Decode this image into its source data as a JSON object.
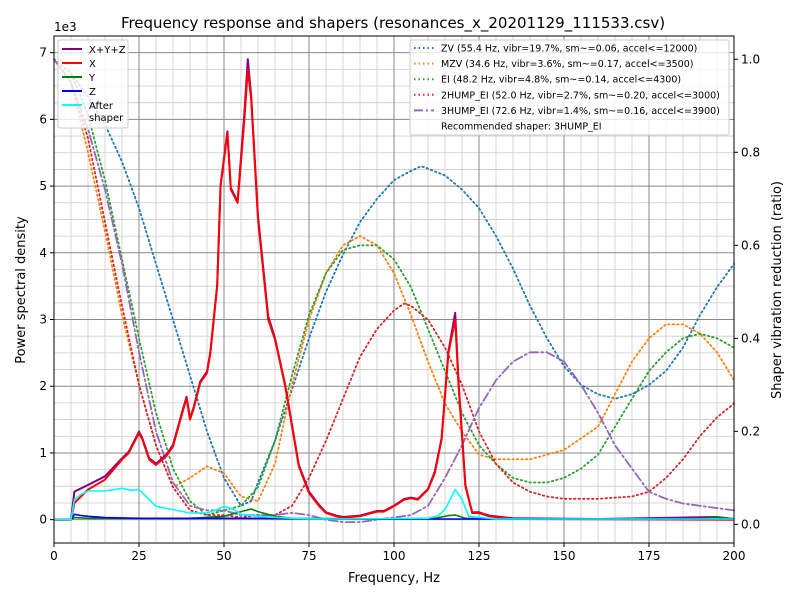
{
  "chart_data": {
    "type": "line",
    "title": "Frequency response and shapers (resonances_x_20201129_111533.csv)",
    "xlabel": "Frequency, Hz",
    "ylabel": "Power spectral density",
    "ylabel_right": "Shaper vibration reduction (ratio)",
    "y_offset_label": "1e3",
    "xlim": [
      0,
      200
    ],
    "ylim": [
      -0.35,
      7.25
    ],
    "ylim_right": [
      -0.04,
      1.05
    ],
    "x_ticks": [
      0,
      25,
      50,
      75,
      100,
      125,
      150,
      175,
      200
    ],
    "y_ticks": [
      0,
      1,
      2,
      3,
      4,
      5,
      6,
      7
    ],
    "y_ticks_right": [
      0.0,
      0.2,
      0.4,
      0.6,
      0.8,
      1.0
    ],
    "grid": "major and minor",
    "legend_left_placement": "top-left",
    "legend_right_placement": "top-right",
    "psd_series": [
      {
        "name": "X+Y+Z",
        "color": "#800080",
        "points": [
          [
            0,
            0
          ],
          [
            5,
            0
          ],
          [
            6,
            0.42
          ],
          [
            8,
            0.47
          ],
          [
            10,
            0.52
          ],
          [
            15,
            0.65
          ],
          [
            20,
            0.92
          ],
          [
            22,
            1.02
          ],
          [
            24,
            1.22
          ],
          [
            25,
            1.32
          ],
          [
            26,
            1.22
          ],
          [
            28,
            0.92
          ],
          [
            30,
            0.84
          ],
          [
            33,
            0.97
          ],
          [
            35,
            1.12
          ],
          [
            38,
            1.67
          ],
          [
            39,
            1.84
          ],
          [
            40,
            1.52
          ],
          [
            41,
            1.67
          ],
          [
            43,
            2.07
          ],
          [
            45,
            2.22
          ],
          [
            46,
            2.52
          ],
          [
            48,
            3.52
          ],
          [
            49,
            5.02
          ],
          [
            51,
            5.82
          ],
          [
            52,
            4.97
          ],
          [
            54,
            4.77
          ],
          [
            56,
            6.1
          ],
          [
            57,
            6.9
          ],
          [
            58,
            6.35
          ],
          [
            60,
            4.55
          ],
          [
            62,
            3.55
          ],
          [
            63,
            3.05
          ],
          [
            65,
            2.72
          ],
          [
            68,
            2.02
          ],
          [
            70,
            1.42
          ],
          [
            72,
            0.82
          ],
          [
            75,
            0.42
          ],
          [
            78,
            0.22
          ],
          [
            80,
            0.11
          ],
          [
            83,
            0.06
          ],
          [
            85,
            0.04
          ],
          [
            90,
            0.06
          ],
          [
            95,
            0.13
          ],
          [
            97,
            0.13
          ],
          [
            100,
            0.21
          ],
          [
            103,
            0.31
          ],
          [
            105,
            0.33
          ],
          [
            107,
            0.31
          ],
          [
            110,
            0.46
          ],
          [
            112,
            0.72
          ],
          [
            114,
            1.22
          ],
          [
            116,
            2.52
          ],
          [
            118,
            3.1
          ],
          [
            119,
            2.05
          ],
          [
            121,
            0.52
          ],
          [
            122,
            0.31
          ],
          [
            123,
            0.11
          ],
          [
            125,
            0.11
          ],
          [
            128,
            0.06
          ],
          [
            135,
            0.02
          ],
          [
            160,
            0.01
          ],
          [
            195,
            0.04
          ],
          [
            200,
            0.01
          ]
        ]
      },
      {
        "name": "X",
        "color": "#ff0000",
        "points": [
          [
            0,
            0
          ],
          [
            5,
            0
          ],
          [
            6,
            0.25
          ],
          [
            8,
            0.35
          ],
          [
            10,
            0.45
          ],
          [
            15,
            0.6
          ],
          [
            20,
            0.9
          ],
          [
            22,
            1.0
          ],
          [
            24,
            1.2
          ],
          [
            25,
            1.3
          ],
          [
            26,
            1.2
          ],
          [
            28,
            0.9
          ],
          [
            30,
            0.82
          ],
          [
            33,
            0.95
          ],
          [
            35,
            1.1
          ],
          [
            38,
            1.65
          ],
          [
            39,
            1.82
          ],
          [
            40,
            1.5
          ],
          [
            41,
            1.65
          ],
          [
            43,
            2.05
          ],
          [
            45,
            2.2
          ],
          [
            46,
            2.5
          ],
          [
            48,
            3.5
          ],
          [
            49,
            5.0
          ],
          [
            51,
            5.8
          ],
          [
            52,
            4.95
          ],
          [
            54,
            4.75
          ],
          [
            56,
            6.0
          ],
          [
            57,
            6.75
          ],
          [
            58,
            6.3
          ],
          [
            60,
            4.5
          ],
          [
            62,
            3.5
          ],
          [
            63,
            3.0
          ],
          [
            65,
            2.7
          ],
          [
            68,
            2.0
          ],
          [
            70,
            1.4
          ],
          [
            72,
            0.8
          ],
          [
            75,
            0.4
          ],
          [
            78,
            0.2
          ],
          [
            80,
            0.1
          ],
          [
            83,
            0.05
          ],
          [
            85,
            0.03
          ],
          [
            90,
            0.05
          ],
          [
            95,
            0.12
          ],
          [
            97,
            0.12
          ],
          [
            100,
            0.2
          ],
          [
            103,
            0.3
          ],
          [
            105,
            0.32
          ],
          [
            107,
            0.3
          ],
          [
            110,
            0.45
          ],
          [
            112,
            0.7
          ],
          [
            114,
            1.2
          ],
          [
            116,
            2.5
          ],
          [
            118,
            3.0
          ],
          [
            119,
            2.0
          ],
          [
            121,
            0.5
          ],
          [
            122,
            0.3
          ],
          [
            123,
            0.1
          ],
          [
            125,
            0.1
          ],
          [
            128,
            0.05
          ],
          [
            135,
            0.01
          ],
          [
            200,
            0
          ]
        ]
      },
      {
        "name": "Y",
        "color": "#008000",
        "points": [
          [
            0,
            0
          ],
          [
            5,
            0
          ],
          [
            6,
            0.03
          ],
          [
            10,
            0.02
          ],
          [
            20,
            0.02
          ],
          [
            40,
            0.02
          ],
          [
            50,
            0.05
          ],
          [
            55,
            0.12
          ],
          [
            58,
            0.16
          ],
          [
            60,
            0.12
          ],
          [
            65,
            0.05
          ],
          [
            70,
            0.02
          ],
          [
            100,
            0.01
          ],
          [
            112,
            0.02
          ],
          [
            116,
            0.06
          ],
          [
            118,
            0.07
          ],
          [
            121,
            0.02
          ],
          [
            130,
            0.01
          ],
          [
            190,
            0.01
          ],
          [
            195,
            0.04
          ],
          [
            200,
            0.01
          ]
        ]
      },
      {
        "name": "Z",
        "color": "#0000ff",
        "points": [
          [
            0,
            0
          ],
          [
            5,
            0
          ],
          [
            6,
            0.08
          ],
          [
            8,
            0.06
          ],
          [
            10,
            0.05
          ],
          [
            15,
            0.03
          ],
          [
            25,
            0.02
          ],
          [
            40,
            0.02
          ],
          [
            60,
            0.02
          ],
          [
            80,
            0.01
          ],
          [
            200,
            0.01
          ]
        ]
      },
      {
        "name": "After\nshaper",
        "color": "#00ffff",
        "points": [
          [
            0,
            0
          ],
          [
            5,
            0
          ],
          [
            6,
            0.3
          ],
          [
            8,
            0.38
          ],
          [
            10,
            0.43
          ],
          [
            15,
            0.43
          ],
          [
            20,
            0.47
          ],
          [
            23,
            0.44
          ],
          [
            25,
            0.45
          ],
          [
            27,
            0.35
          ],
          [
            30,
            0.2
          ],
          [
            35,
            0.15
          ],
          [
            40,
            0.1
          ],
          [
            45,
            0.1
          ],
          [
            48,
            0.15
          ],
          [
            50,
            0.2
          ],
          [
            53,
            0.15
          ],
          [
            55,
            0.08
          ],
          [
            60,
            0.05
          ],
          [
            70,
            0.02
          ],
          [
            80,
            0.01
          ],
          [
            110,
            0.02
          ],
          [
            113,
            0.06
          ],
          [
            115,
            0.15
          ],
          [
            118,
            0.45
          ],
          [
            120,
            0.3
          ],
          [
            122,
            0.05
          ],
          [
            130,
            0.01
          ],
          [
            200,
            0.01
          ]
        ]
      }
    ],
    "shaper_series": [
      {
        "name": "ZV (55.4 Hz, vibr=19.7%, sm~=0.06, accel<=12000)",
        "color": "#1f77b4",
        "style": "dotted",
        "x": [
          0,
          5,
          10,
          15,
          20,
          25,
          30,
          35,
          40,
          45,
          50,
          55,
          58,
          60,
          65,
          70,
          75,
          80,
          85,
          90,
          95,
          100,
          105,
          108,
          110,
          115,
          120,
          125,
          130,
          135,
          140,
          145,
          150,
          155,
          160,
          165,
          170,
          175,
          180,
          185,
          190,
          195,
          200
        ],
        "values": [
          1.0,
          0.97,
          0.92,
          0.86,
          0.78,
          0.68,
          0.56,
          0.44,
          0.32,
          0.2,
          0.1,
          0.04,
          0.05,
          0.09,
          0.18,
          0.29,
          0.4,
          0.5,
          0.58,
          0.65,
          0.7,
          0.74,
          0.76,
          0.77,
          0.765,
          0.75,
          0.72,
          0.68,
          0.62,
          0.55,
          0.47,
          0.4,
          0.34,
          0.3,
          0.28,
          0.27,
          0.28,
          0.3,
          0.33,
          0.38,
          0.45,
          0.51,
          0.56
        ]
      },
      {
        "name": "MZV (34.6 Hz, vibr=3.6%, sm~=0.17, accel<=3500)",
        "color": "#ff7f0e",
        "style": "dotted",
        "x": [
          0,
          5,
          10,
          15,
          20,
          25,
          30,
          35,
          40,
          45,
          50,
          55,
          60,
          65,
          70,
          75,
          80,
          85,
          90,
          95,
          100,
          105,
          110,
          115,
          120,
          125,
          130,
          140,
          150,
          160,
          165,
          170,
          175,
          180,
          185,
          190,
          195,
          200
        ],
        "values": [
          1.0,
          0.95,
          0.8,
          0.63,
          0.45,
          0.3,
          0.17,
          0.08,
          0.1,
          0.125,
          0.11,
          0.06,
          0.05,
          0.13,
          0.3,
          0.44,
          0.54,
          0.6,
          0.62,
          0.6,
          0.54,
          0.45,
          0.35,
          0.26,
          0.2,
          0.15,
          0.14,
          0.14,
          0.16,
          0.21,
          0.28,
          0.35,
          0.4,
          0.43,
          0.43,
          0.41,
          0.37,
          0.31
        ]
      },
      {
        "name": "EI (48.2 Hz, vibr=4.8%, sm~=0.14, accel<=4300)",
        "color": "#2ca02c",
        "style": "dotted",
        "x": [
          0,
          5,
          10,
          15,
          20,
          25,
          30,
          35,
          40,
          45,
          50,
          55,
          60,
          65,
          70,
          75,
          80,
          85,
          90,
          95,
          100,
          105,
          110,
          115,
          120,
          125,
          130,
          135,
          140,
          145,
          150,
          155,
          160,
          165,
          170,
          175,
          180,
          185,
          190,
          195,
          200
        ],
        "values": [
          1.0,
          0.97,
          0.88,
          0.74,
          0.57,
          0.4,
          0.24,
          0.12,
          0.05,
          0.02,
          0.03,
          0.04,
          0.08,
          0.18,
          0.32,
          0.45,
          0.54,
          0.59,
          0.6,
          0.6,
          0.57,
          0.51,
          0.42,
          0.33,
          0.24,
          0.17,
          0.13,
          0.1,
          0.09,
          0.09,
          0.1,
          0.12,
          0.15,
          0.21,
          0.27,
          0.33,
          0.37,
          0.4,
          0.41,
          0.4,
          0.38
        ]
      },
      {
        "name": "2HUMP_EI (52.0 Hz, vibr=2.7%, sm~=0.20, accel<=3000)",
        "color": "#d62728",
        "style": "dotted",
        "x": [
          0,
          5,
          10,
          15,
          20,
          25,
          30,
          35,
          40,
          45,
          50,
          55,
          60,
          65,
          70,
          75,
          80,
          85,
          90,
          95,
          100,
          103,
          105,
          110,
          115,
          120,
          125,
          130,
          135,
          140,
          145,
          150,
          160,
          170,
          175,
          180,
          185,
          190,
          195,
          200
        ],
        "values": [
          1.0,
          0.95,
          0.83,
          0.65,
          0.47,
          0.3,
          0.17,
          0.08,
          0.03,
          0.02,
          0.02,
          0.015,
          0.02,
          0.02,
          0.04,
          0.1,
          0.18,
          0.27,
          0.36,
          0.42,
          0.46,
          0.475,
          0.47,
          0.44,
          0.38,
          0.3,
          0.2,
          0.13,
          0.09,
          0.07,
          0.06,
          0.055,
          0.055,
          0.06,
          0.07,
          0.1,
          0.14,
          0.19,
          0.23,
          0.26
        ]
      },
      {
        "name": "3HUMP_EI (72.6 Hz, vibr=1.4%, sm~=0.16, accel<=3900)",
        "color": "#9467bd",
        "style": "dashdot",
        "x": [
          0,
          5,
          10,
          15,
          20,
          25,
          30,
          35,
          40,
          45,
          50,
          55,
          60,
          65,
          70,
          75,
          80,
          85,
          90,
          95,
          100,
          105,
          110,
          115,
          120,
          125,
          130,
          135,
          140,
          145,
          150,
          155,
          160,
          165,
          170,
          175,
          180,
          185,
          190,
          195,
          200
        ],
        "values": [
          1.0,
          0.95,
          0.85,
          0.72,
          0.56,
          0.37,
          0.2,
          0.09,
          0.04,
          0.03,
          0.03,
          0.02,
          0.02,
          0.02,
          0.025,
          0.02,
          0.01,
          0.005,
          0.005,
          0.01,
          0.015,
          0.02,
          0.04,
          0.1,
          0.17,
          0.25,
          0.31,
          0.35,
          0.37,
          0.37,
          0.35,
          0.3,
          0.24,
          0.17,
          0.12,
          0.07,
          0.055,
          0.045,
          0.04,
          0.035,
          0.03
        ]
      }
    ],
    "annotation": "Recommended shaper: 3HUMP_EI"
  }
}
